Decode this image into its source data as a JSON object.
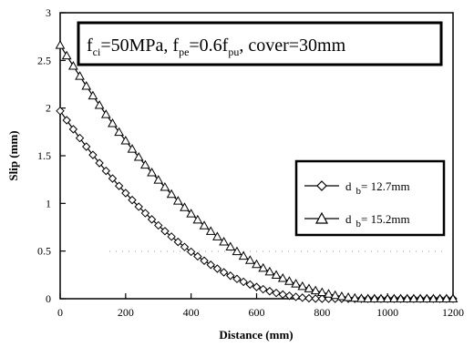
{
  "chart_data": {
    "type": "line",
    "title_parts": {
      "f1": "f",
      "f1_sub": "ci",
      "eq1": "=50MPa, ",
      "f2": "f",
      "f2_sub": "pe",
      "eq2": "=0.6f",
      "f3_sub": "pu",
      "rest": ", cover=30mm"
    },
    "xlabel": "Distance (mm)",
    "ylabel": "Slip (mm)",
    "xlim": [
      0,
      1200
    ],
    "ylim": [
      0,
      3
    ],
    "xticks": [
      "0",
      "200",
      "400",
      "600",
      "800",
      "1000",
      "1200"
    ],
    "yticks": [
      "0",
      "0.5",
      "1",
      "1.5",
      "2",
      "2.5",
      "3"
    ],
    "legend_position": "right",
    "series": [
      {
        "name_prefix": "d",
        "name_sub": "b",
        "name_rest": "= 12.7mm",
        "marker": "diamond",
        "x0": 0,
        "y0": 1.97,
        "x_end": 800,
        "x_max": 1200,
        "step": 20
      },
      {
        "name_prefix": "d",
        "name_sub": "b",
        "name_rest": "= 15.2mm",
        "marker": "triangle",
        "x0": 0,
        "y0": 2.66,
        "x_end": 950,
        "x_max": 1200,
        "step": 20
      }
    ]
  }
}
